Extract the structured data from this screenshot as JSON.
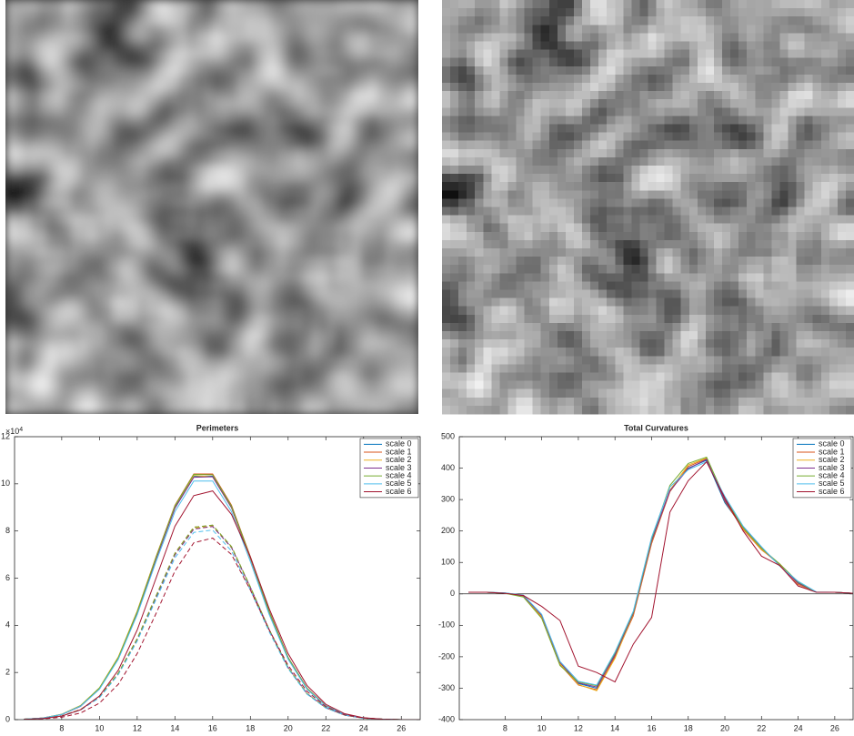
{
  "chart_data": [
    {
      "type": "line",
      "title": "Perimeters",
      "y_multiplier": "×10",
      "y_multiplier_exponent": "4",
      "xlim": [
        5.5,
        27
      ],
      "xticks": [
        8,
        10,
        12,
        14,
        16,
        18,
        20,
        22,
        24,
        26
      ],
      "ylim": [
        0,
        12
      ],
      "yticks": [
        0,
        2,
        4,
        6,
        8,
        10,
        12
      ],
      "legend": "upper-right",
      "x": [
        6,
        7,
        8,
        9,
        10,
        11,
        12,
        13,
        14,
        15,
        16,
        17,
        18,
        19,
        20,
        21,
        22,
        23,
        24,
        25,
        26,
        27
      ],
      "series": [
        {
          "name": "scale 0",
          "color": "#0072BD",
          "values": [
            0.02,
            0.07,
            0.22,
            0.58,
            1.32,
            2.61,
            4.54,
            6.84,
            9.0,
            10.32,
            10.32,
            9.0,
            6.84,
            4.54,
            2.61,
            1.32,
            0.58,
            0.22,
            0.07,
            0.02,
            0,
            0
          ],
          "dashed_values": [
            0.01,
            0.05,
            0.15,
            0.42,
            0.95,
            1.95,
            3.4,
            5.2,
            7.0,
            8.1,
            8.2,
            7.3,
            5.6,
            3.8,
            2.2,
            1.1,
            0.5,
            0.19,
            0.06,
            0.02,
            0,
            0
          ]
        },
        {
          "name": "scale 1",
          "color": "#D95319",
          "values": [
            0.02,
            0.07,
            0.22,
            0.59,
            1.33,
            2.64,
            4.59,
            6.91,
            9.09,
            10.42,
            10.42,
            9.09,
            6.91,
            4.59,
            2.64,
            1.33,
            0.59,
            0.22,
            0.07,
            0.02,
            0,
            0
          ],
          "dashed_values": [
            0.01,
            0.05,
            0.16,
            0.43,
            0.97,
            1.98,
            3.44,
            5.25,
            7.06,
            8.16,
            8.24,
            7.33,
            5.62,
            3.8,
            2.2,
            1.1,
            0.5,
            0.19,
            0.06,
            0.02,
            0,
            0
          ]
        },
        {
          "name": "scale 2",
          "color": "#EDB120",
          "values": [
            0.02,
            0.07,
            0.23,
            0.6,
            1.35,
            2.66,
            4.6,
            6.9,
            9.05,
            10.35,
            10.3,
            8.98,
            6.82,
            4.52,
            2.6,
            1.31,
            0.57,
            0.22,
            0.07,
            0.02,
            0,
            0
          ],
          "dashed_values": [
            0.01,
            0.05,
            0.15,
            0.43,
            0.96,
            1.96,
            3.42,
            5.22,
            7.02,
            8.12,
            8.2,
            7.29,
            5.59,
            3.79,
            2.19,
            1.1,
            0.5,
            0.19,
            0.06,
            0.02,
            0,
            0
          ]
        },
        {
          "name": "scale 3",
          "color": "#7E2F8E",
          "values": [
            0.02,
            0.07,
            0.21,
            0.56,
            1.3,
            2.58,
            4.5,
            6.8,
            8.96,
            10.28,
            10.3,
            8.99,
            6.85,
            4.56,
            2.63,
            1.33,
            0.59,
            0.22,
            0.07,
            0.02,
            0,
            0
          ],
          "dashed_values": [
            0.01,
            0.05,
            0.15,
            0.41,
            0.94,
            1.93,
            3.38,
            5.18,
            6.98,
            8.08,
            8.19,
            7.3,
            5.61,
            3.81,
            2.21,
            1.11,
            0.51,
            0.19,
            0.06,
            0.02,
            0,
            0
          ]
        },
        {
          "name": "scale 4",
          "color": "#77AC30",
          "values": [
            0.02,
            0.07,
            0.22,
            0.59,
            1.34,
            2.63,
            4.57,
            6.88,
            9.06,
            10.4,
            10.38,
            9.05,
            6.88,
            4.57,
            2.63,
            1.33,
            0.58,
            0.22,
            0.07,
            0.02,
            0,
            0
          ],
          "dashed_values": [
            0.01,
            0.05,
            0.16,
            0.43,
            0.97,
            1.97,
            3.43,
            5.24,
            7.05,
            8.16,
            8.25,
            7.34,
            5.63,
            3.82,
            2.21,
            1.1,
            0.5,
            0.19,
            0.06,
            0.02,
            0,
            0
          ]
        },
        {
          "name": "scale 5",
          "color": "#4DBEEE",
          "values": [
            0.02,
            0.07,
            0.22,
            0.57,
            1.29,
            2.56,
            4.45,
            6.7,
            8.82,
            10.12,
            10.12,
            8.82,
            6.7,
            4.45,
            2.56,
            1.29,
            0.57,
            0.22,
            0.07,
            0.02,
            0,
            0
          ],
          "dashed_values": [
            0.01,
            0.05,
            0.15,
            0.41,
            0.93,
            1.91,
            3.33,
            5.1,
            6.86,
            7.94,
            8.04,
            7.15,
            5.49,
            3.72,
            2.16,
            1.08,
            0.49,
            0.19,
            0.06,
            0.02,
            0,
            0
          ]
        },
        {
          "name": "scale 6",
          "color": "#A2142F",
          "values": [
            0.01,
            0.05,
            0.15,
            0.42,
            1.0,
            2.1,
            3.8,
            6.0,
            8.2,
            9.5,
            9.7,
            8.7,
            6.9,
            4.7,
            2.8,
            1.45,
            0.65,
            0.25,
            0.08,
            0.02,
            0,
            0
          ],
          "dashed_values": [
            0.01,
            0.03,
            0.1,
            0.28,
            0.7,
            1.5,
            2.8,
            4.5,
            6.3,
            7.5,
            7.7,
            7.0,
            5.5,
            3.8,
            2.3,
            1.2,
            0.55,
            0.2,
            0.07,
            0.02,
            0,
            0
          ]
        }
      ]
    },
    {
      "type": "line",
      "title": "Total Curvatures",
      "hline": 0,
      "xlim": [
        5.5,
        27
      ],
      "xticks": [
        8,
        10,
        12,
        14,
        16,
        18,
        20,
        22,
        24,
        26
      ],
      "ylim": [
        -400,
        500
      ],
      "yticks": [
        -400,
        -300,
        -200,
        -100,
        0,
        100,
        200,
        300,
        400,
        500
      ],
      "legend": "upper-right",
      "x": [
        6,
        7,
        8,
        9,
        10,
        11,
        12,
        13,
        14,
        15,
        16,
        17,
        18,
        19,
        20,
        21,
        22,
        23,
        24,
        25,
        26,
        27
      ],
      "series": [
        {
          "name": "scale 0",
          "color": "#0072BD",
          "values": [
            5,
            5,
            3,
            -5,
            -70,
            -220,
            -285,
            -300,
            -190,
            -60,
            170,
            330,
            400,
            425,
            290,
            210,
            145,
            90,
            35,
            5,
            5,
            2
          ]
        },
        {
          "name": "scale 1",
          "color": "#D95319",
          "values": [
            5,
            5,
            2,
            -5,
            -75,
            -225,
            -290,
            -305,
            -200,
            -70,
            160,
            325,
            405,
            430,
            295,
            205,
            140,
            95,
            30,
            5,
            5,
            2
          ]
        },
        {
          "name": "scale 2",
          "color": "#EDB120",
          "values": [
            5,
            5,
            2,
            -8,
            -72,
            -222,
            -288,
            -308,
            -205,
            -65,
            165,
            330,
            410,
            432,
            300,
            208,
            142,
            92,
            32,
            5,
            5,
            2
          ]
        },
        {
          "name": "scale 3",
          "color": "#7E2F8E",
          "values": [
            5,
            5,
            2,
            -6,
            -68,
            -218,
            -283,
            -296,
            -195,
            -62,
            168,
            328,
            398,
            428,
            298,
            212,
            146,
            90,
            34,
            5,
            5,
            2
          ]
        },
        {
          "name": "scale 4",
          "color": "#77AC30",
          "values": [
            5,
            5,
            2,
            -10,
            -78,
            -228,
            -280,
            -292,
            -188,
            -58,
            175,
            345,
            415,
            435,
            305,
            210,
            145,
            95,
            38,
            5,
            5,
            2
          ]
        },
        {
          "name": "scale 5",
          "color": "#4DBEEE",
          "values": [
            5,
            5,
            3,
            -4,
            -65,
            -215,
            -278,
            -290,
            -185,
            -55,
            180,
            340,
            395,
            420,
            310,
            215,
            150,
            88,
            40,
            6,
            5,
            2
          ]
        },
        {
          "name": "scale 6",
          "color": "#A2142F",
          "values": [
            5,
            5,
            2,
            -5,
            -40,
            -85,
            -230,
            -250,
            -280,
            -160,
            -75,
            260,
            360,
            420,
            305,
            200,
            120,
            90,
            25,
            5,
            5,
            2
          ]
        }
      ]
    }
  ]
}
